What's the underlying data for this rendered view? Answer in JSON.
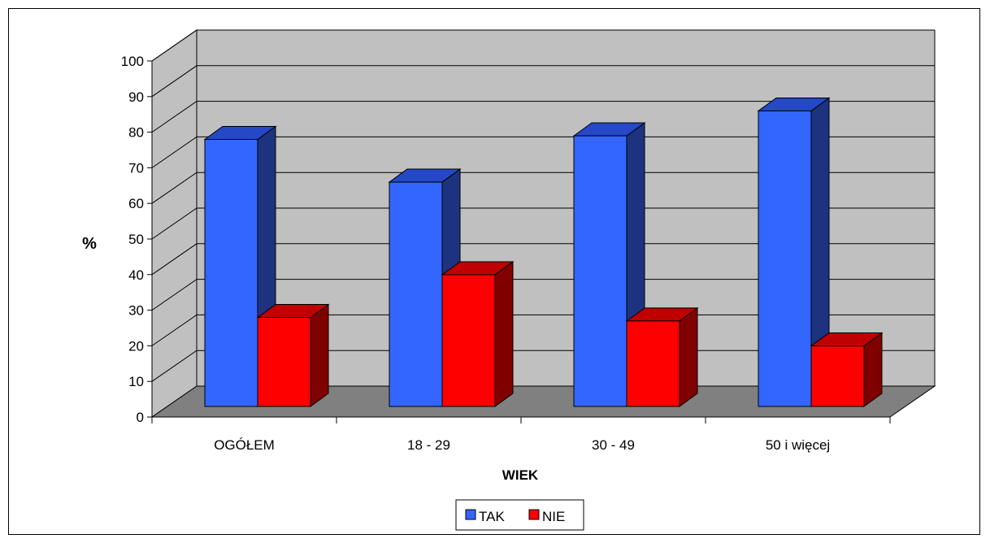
{
  "chart_data": {
    "type": "bar",
    "title": "",
    "xlabel": "WIEK",
    "ylabel": "%",
    "ylim": [
      0,
      100
    ],
    "yticks": [
      0,
      10,
      20,
      30,
      40,
      50,
      60,
      70,
      80,
      90,
      100
    ],
    "categories": [
      "OGÓŁEM",
      "18 - 29",
      "30 - 49",
      "50 i więcej"
    ],
    "series": [
      {
        "name": "TAK",
        "values": [
          75,
          63,
          76,
          83
        ],
        "color": "#3366FF",
        "side_color": "#1E3380"
      },
      {
        "name": "NIE",
        "values": [
          25,
          37,
          24,
          17
        ],
        "color": "#FF0000",
        "side_color": "#800000"
      }
    ],
    "grid": true,
    "legend_position": "bottom-center",
    "wall_color": "#C0C0C0",
    "floor_color": "#808080"
  }
}
